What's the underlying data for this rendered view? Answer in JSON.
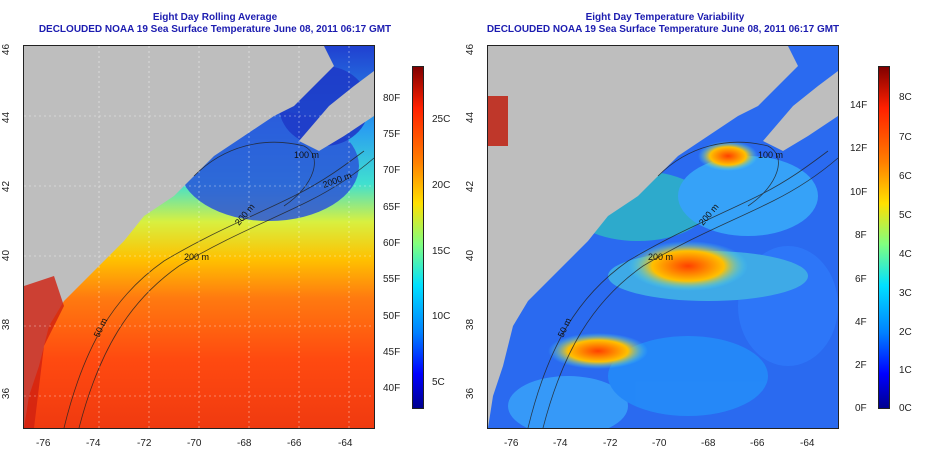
{
  "left_panel": {
    "title_line1": "Eight Day Rolling Average",
    "title_line2": "DECLOUDED NOAA 19 Sea Surface Temperature June 08, 2011 06:17 GMT",
    "lon_ticks": [
      "-76",
      "-74",
      "-72",
      "-70",
      "-68",
      "-66",
      "-64"
    ],
    "lat_ticks": [
      "46",
      "44",
      "42",
      "40",
      "38",
      "36"
    ],
    "colorbar_F": [
      "80F",
      "75F",
      "70F",
      "65F",
      "60F",
      "55F",
      "50F",
      "45F",
      "40F"
    ],
    "colorbar_C": [
      "25C",
      "20C",
      "15C",
      "10C",
      "5C"
    ],
    "contour_labels": [
      "200 m",
      "200 m",
      "2000 m",
      "100 m",
      "50 m"
    ]
  },
  "right_panel": {
    "title_line1": "Eight Day Temperature Variability",
    "title_line2": "DECLOUDED NOAA 19 Sea Surface Temperature June 08, 2011 06:17 GMT",
    "lon_ticks": [
      "-76",
      "-74",
      "-72",
      "-70",
      "-68",
      "-66",
      "-64"
    ],
    "lat_ticks": [
      "46",
      "44",
      "42",
      "40",
      "38",
      "36"
    ],
    "colorbar_F": [
      "14F",
      "12F",
      "10F",
      "8F",
      "6F",
      "4F",
      "2F",
      "0F"
    ],
    "colorbar_C": [
      "8C",
      "7C",
      "6C",
      "5C",
      "4C",
      "3C",
      "2C",
      "1C",
      "0C"
    ],
    "contour_labels": [
      "200 m",
      "200 m",
      "100 m",
      "50 m"
    ]
  },
  "colors": {
    "title": "#1c1cb0",
    "land": "#bebebe",
    "jet_low": "#00008f",
    "jet_high": "#800000"
  }
}
